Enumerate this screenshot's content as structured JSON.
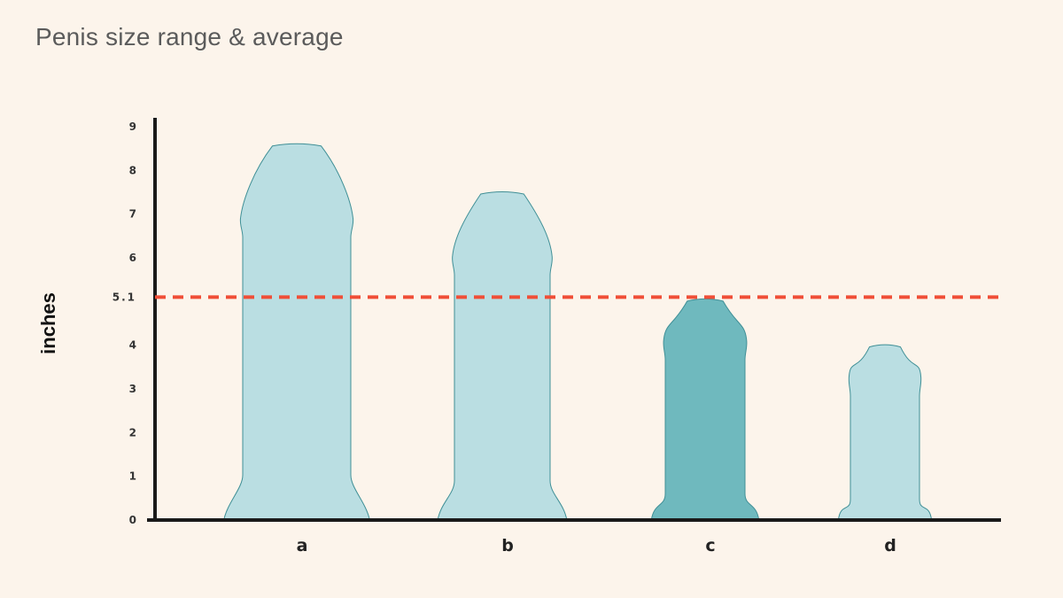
{
  "header": {
    "title": "Penis size range & average"
  },
  "chart_data": {
    "type": "bar",
    "title": "Penis size range & average",
    "ylabel": "inches",
    "xlabel": "",
    "ylim": [
      0,
      9
    ],
    "yticks": [
      "0",
      "1",
      "2",
      "3",
      "4",
      "5",
      "6",
      "7",
      "8",
      "9"
    ],
    "categories": [
      "a",
      "b",
      "c",
      "d"
    ],
    "values": [
      8.6,
      7.5,
      5.05,
      4.0
    ],
    "highlight_index": 2,
    "reference_line": {
      "value": 5.1,
      "label": "5.1",
      "color": "#f04e37",
      "style": "dashed"
    },
    "colors": {
      "default": "#badee2",
      "highlight": "#6fb9be",
      "outline": "#3f8f96"
    },
    "grid": false
  }
}
